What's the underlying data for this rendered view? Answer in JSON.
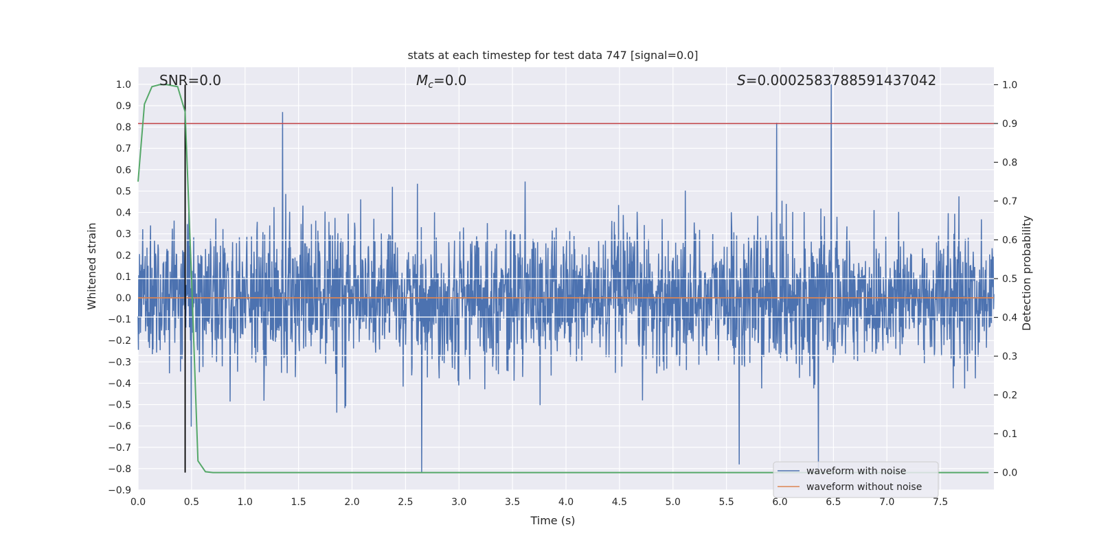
{
  "chart_data": {
    "type": "line",
    "title": "stats at each timestep for test data 747 [signal=0.0]",
    "xlabel": "Time (s)",
    "ylabel_left": "Whitened strain",
    "ylabel_right": "Detection probability",
    "xlim": [
      0.0,
      8.0
    ],
    "ylim_left": [
      -0.9,
      1.08
    ],
    "ylim_right": [
      -0.045,
      1.045
    ],
    "x_ticks": [
      "0.0",
      "0.5",
      "1.0",
      "1.5",
      "2.0",
      "2.5",
      "3.0",
      "3.5",
      "4.0",
      "4.5",
      "5.0",
      "5.5",
      "6.0",
      "6.5",
      "7.0",
      "7.5"
    ],
    "y_ticks_left": [
      "-0.9",
      "-0.8",
      "-0.7",
      "-0.6",
      "-0.5",
      "-0.4",
      "-0.3",
      "-0.2",
      "-0.1",
      "0.0",
      "0.1",
      "0.2",
      "0.3",
      "0.4",
      "0.5",
      "0.6",
      "0.7",
      "0.8",
      "0.9",
      "1.0"
    ],
    "y_ticks_right": [
      "0.0",
      "0.1",
      "0.2",
      "0.3",
      "0.4",
      "0.5",
      "0.6",
      "0.7",
      "0.8",
      "0.9",
      "1.0"
    ],
    "grid": true,
    "legend_position": "lower-right",
    "annotations": {
      "snr": "SNR=0.0",
      "mc": "=0.0",
      "mc_symbol": "M",
      "mc_sub": "c",
      "s": "=0.0002583788591437042",
      "s_symbol": "S"
    },
    "series": [
      {
        "name": "waveform with noise",
        "color": "#4c72b0",
        "axis": "left",
        "description_points": {
          "t_range": [
            0.0,
            8.0
          ],
          "amplitude_typical": 0.35,
          "peaks": [
            [
              1.35,
              0.87
            ],
            [
              6.48,
              1.0
            ],
            [
              5.97,
              0.82
            ],
            [
              2.65,
              -0.82
            ],
            [
              6.36,
              -0.8
            ],
            [
              5.62,
              -0.78
            ]
          ]
        }
      },
      {
        "name": "waveform without noise",
        "color": "#dd8452",
        "axis": "left",
        "x": [
          0.0,
          8.0
        ],
        "y": [
          0.0,
          0.0
        ]
      },
      {
        "name": "",
        "color": "#55a868",
        "axis": "right",
        "x": [
          0.0,
          0.06,
          0.13,
          0.2,
          0.27,
          0.37,
          0.44,
          0.5,
          0.56,
          0.63,
          0.7,
          1.0,
          2.0,
          4.0,
          6.0,
          7.95
        ],
        "y": [
          0.75,
          0.95,
          0.995,
          1.0,
          1.0,
          0.995,
          0.93,
          0.5,
          0.03,
          0.002,
          0.0,
          0.0,
          0.0,
          0.0,
          0.0,
          0.0
        ]
      }
    ],
    "threshold_line": {
      "color": "#c44e52",
      "axis": "right",
      "y": 0.9
    },
    "marker_line": {
      "color": "#000000",
      "x": 0.44,
      "y_range_right": [
        0.0,
        1.0
      ]
    }
  }
}
